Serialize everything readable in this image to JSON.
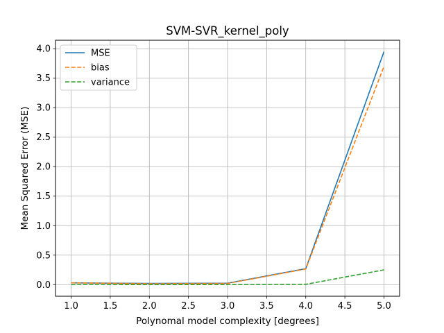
{
  "chart_data": {
    "type": "line",
    "title": "SVM-SVR_kernel_poly",
    "xlabel": "Polynomal model complexity [degrees]",
    "ylabel": "Mean Squared Error (MSE)",
    "x": [
      1,
      2,
      3,
      4,
      5
    ],
    "xlim": [
      0.8,
      5.2
    ],
    "ylim": [
      -0.197,
      4.144
    ],
    "xticks": [
      1.0,
      1.5,
      2.0,
      2.5,
      3.0,
      3.5,
      4.0,
      4.5,
      5.0
    ],
    "yticks": [
      0.0,
      0.5,
      1.0,
      1.5,
      2.0,
      2.5,
      3.0,
      3.5,
      4.0
    ],
    "grid": true,
    "legend_position": "upper-left",
    "series": [
      {
        "name": "MSE",
        "values": [
          0.03,
          0.02,
          0.025,
          0.27,
          3.95
        ],
        "color": "#1f77b4",
        "style": "solid"
      },
      {
        "name": "bias",
        "values": [
          0.03,
          0.015,
          0.02,
          0.265,
          3.7
        ],
        "color": "#ff7f0e",
        "style": "dashed"
      },
      {
        "name": "variance",
        "values": [
          0.0,
          0.0,
          0.0,
          0.005,
          0.25
        ],
        "color": "#2ca02c",
        "style": "dashed"
      }
    ]
  }
}
